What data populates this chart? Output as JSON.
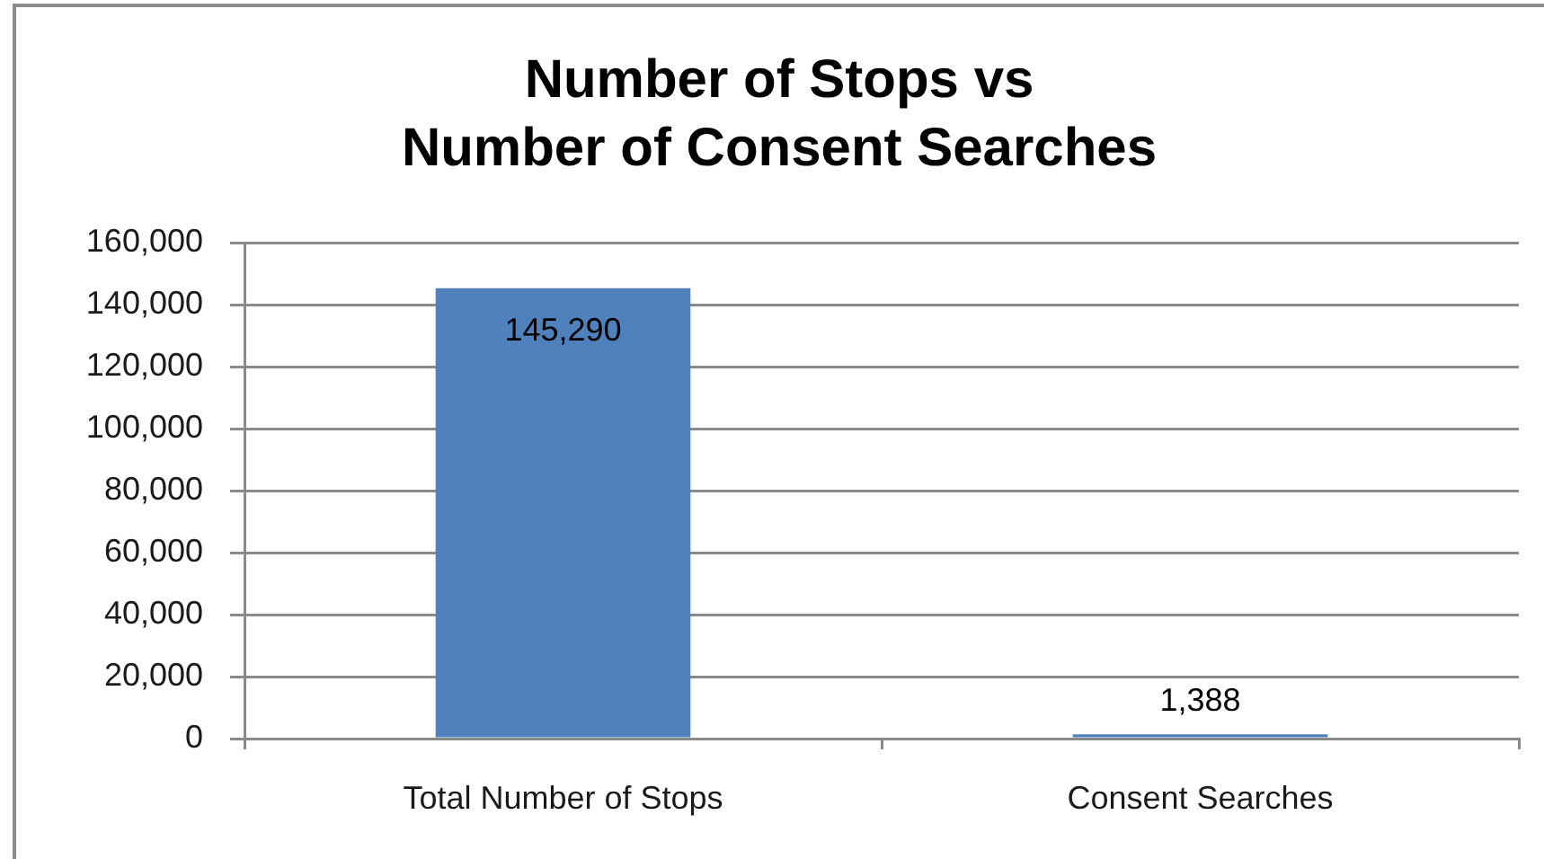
{
  "chart_data": {
    "type": "bar",
    "title": "Number of Stops vs\nNumber of Consent Searches",
    "categories": [
      "Total Number of Stops",
      "Consent Searches"
    ],
    "values": [
      145290,
      1388
    ],
    "value_labels": [
      "145,290",
      "1,388"
    ],
    "color": "#4f81bd",
    "ylim": [
      0,
      160000
    ],
    "yticks": [
      0,
      {
        "value": 20000,
        "label": "20,000"
      },
      {
        "value": 40000,
        "label": "40,000"
      },
      {
        "value": 60000,
        "label": "60,000"
      },
      {
        "value": 80000,
        "label": "80,000"
      },
      {
        "value": 100000,
        "label": "100,000"
      },
      {
        "value": 120000,
        "label": "120,000"
      },
      {
        "value": 140000,
        "label": "140,000"
      },
      {
        "value": 160000,
        "label": "160,000"
      }
    ],
    "grid": "y"
  }
}
